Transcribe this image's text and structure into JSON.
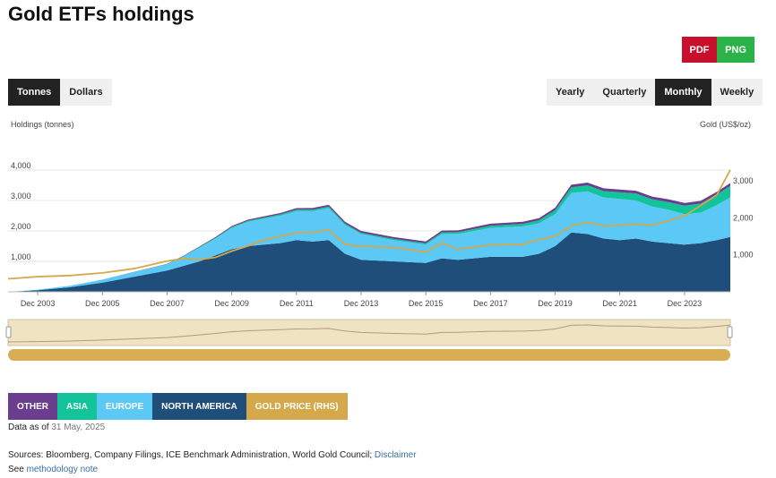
{
  "page": {
    "title": "Gold ETFs holdings",
    "pdf_label": "PDF",
    "png_label": "PNG",
    "units_toggle": [
      {
        "label": "Tonnes",
        "active": true
      },
      {
        "label": "Dollars",
        "active": false
      }
    ],
    "frequency_toggle": [
      {
        "label": "Yearly",
        "active": false
      },
      {
        "label": "Quarterly",
        "active": false
      },
      {
        "label": "Monthly",
        "active": true
      },
      {
        "label": "Weekly",
        "active": false
      }
    ],
    "data_as_of_label": "Data as of",
    "data_as_of_date": "31 May, 2025",
    "sources_text": "Sources: Bloomberg, Company Filings, ICE Benchmark Administration, World Gold Council;",
    "disclaimer_link": "Disclaimer",
    "see_text": "See",
    "methodology_link": "methodology note",
    "colors": {
      "other": "#6a3d8f",
      "asia": "#13c49a",
      "europe": "#5bc8f5",
      "north_america": "#1f4e7a",
      "gold_price": "#d4a84b",
      "navigator_fill": "#f0e3c2",
      "scrollbar": "#d8ad54"
    }
  },
  "chart_data": {
    "type": "area",
    "ylabel": "Holdings (tonnes)",
    "y2label": "Gold (US$/oz)",
    "y_ticks": [
      "1,000",
      "2,000",
      "3,000",
      "4,000"
    ],
    "y2_ticks": [
      "1,000",
      "2,000",
      "3,000"
    ],
    "x_ticks": [
      "Dec 2003",
      "Dec 2005",
      "Dec 2007",
      "Dec 2009",
      "Dec 2011",
      "Dec 2013",
      "Dec 2015",
      "Dec 2017",
      "Dec 2019",
      "Dec 2021",
      "Dec 2023"
    ],
    "ylim": [
      0,
      4500
    ],
    "y2lim": [
      0,
      3700
    ],
    "x": [
      "Jan 2003",
      "Dec 2003",
      "Dec 2004",
      "Dec 2005",
      "Dec 2006",
      "Dec 2007",
      "Jun 2008",
      "Dec 2008",
      "Jun 2009",
      "Dec 2009",
      "Jun 2010",
      "Dec 2010",
      "Jun 2011",
      "Dec 2011",
      "Jun 2012",
      "Dec 2012",
      "Jun 2013",
      "Dec 2013",
      "Dec 2014",
      "Dec 2015",
      "Jun 2016",
      "Dec 2016",
      "Dec 2017",
      "Dec 2018",
      "Jun 2019",
      "Dec 2019",
      "Jun 2020",
      "Dec 2020",
      "Jun 2021",
      "Dec 2021",
      "Jun 2022",
      "Dec 2022",
      "Jun 2023",
      "Dec 2023",
      "Jun 2024",
      "Dec 2024",
      "May 2025"
    ],
    "series": [
      {
        "name": "NORTH AMERICA",
        "values": [
          0,
          50,
          150,
          300,
          500,
          700,
          850,
          1000,
          1200,
          1400,
          1500,
          1550,
          1600,
          1700,
          1650,
          1700,
          1250,
          1050,
          1000,
          950,
          1100,
          1050,
          1150,
          1150,
          1250,
          1500,
          1950,
          1900,
          1750,
          1700,
          1750,
          1650,
          1600,
          1550,
          1600,
          1700,
          1800
        ]
      },
      {
        "name": "EUROPE",
        "values": [
          0,
          20,
          50,
          100,
          150,
          200,
          300,
          450,
          550,
          700,
          800,
          850,
          900,
          950,
          1000,
          1050,
          950,
          850,
          700,
          600,
          800,
          850,
          950,
          1000,
          1000,
          1050,
          1300,
          1400,
          1350,
          1350,
          1250,
          1150,
          1100,
          1000,
          1000,
          1150,
          1300
        ]
      },
      {
        "name": "ASIA",
        "values": [
          0,
          0,
          0,
          0,
          5,
          10,
          15,
          20,
          25,
          30,
          35,
          40,
          45,
          50,
          50,
          50,
          45,
          40,
          40,
          45,
          55,
          60,
          70,
          80,
          100,
          130,
          180,
          200,
          210,
          220,
          230,
          240,
          250,
          280,
          300,
          340,
          380
        ]
      },
      {
        "name": "OTHER",
        "values": [
          0,
          0,
          0,
          0,
          5,
          10,
          15,
          20,
          25,
          30,
          35,
          40,
          45,
          50,
          55,
          60,
          60,
          60,
          60,
          60,
          60,
          60,
          70,
          70,
          70,
          80,
          90,
          90,
          90,
          90,
          90,
          90,
          90,
          90,
          90,
          95,
          95
        ]
      },
      {
        "name": "GOLD PRICE (RHS)",
        "axis": "right",
        "values": [
          350,
          410,
          440,
          510,
          630,
          830,
          900,
          870,
          930,
          1100,
          1240,
          1400,
          1500,
          1600,
          1600,
          1680,
          1280,
          1230,
          1200,
          1070,
          1320,
          1150,
          1270,
          1280,
          1410,
          1500,
          1780,
          1880,
          1780,
          1800,
          1830,
          1800,
          1920,
          2050,
          2330,
          2620,
          3290
        ]
      }
    ]
  }
}
